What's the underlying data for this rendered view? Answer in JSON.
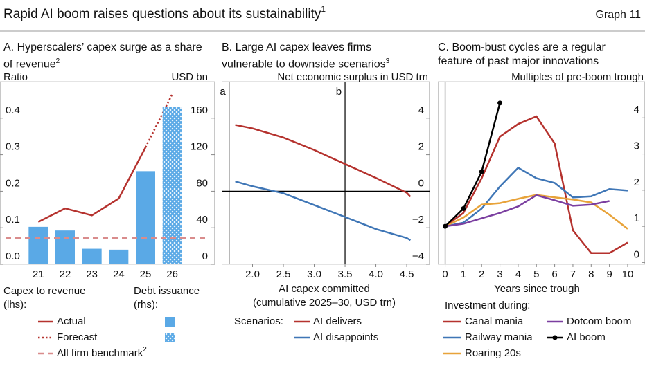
{
  "header": {
    "title": "Rapid AI boom raises questions about its sustainability",
    "title_note": "1",
    "graph_label": "Graph 11"
  },
  "chart_data": [
    {
      "type": "bar",
      "title": "A. Hyperscalers’ capex surge as a share of revenue",
      "title_note": "2",
      "ylabel": "Ratio",
      "y2label": "USD bn",
      "categories": [
        "21",
        "22",
        "23",
        "24",
        "25",
        "26"
      ],
      "ylim": [
        0,
        0.5
      ],
      "yticks": [
        {
          "value": 0,
          "label": "0.0"
        },
        0.1,
        0.2,
        0.3,
        0.4
      ],
      "y2lim": [
        0,
        200
      ],
      "y2ticks": [
        0,
        40,
        80,
        120,
        160
      ],
      "series": [
        {
          "type": "line",
          "name": "Actual",
          "color": "#b5322e",
          "style": "solid",
          "values": [
            0.116,
            0.153,
            0.134,
            0.18,
            0.32,
            null
          ]
        },
        {
          "type": "line",
          "name": "Forecast",
          "color": "#b5322e",
          "style": "dotted",
          "values": [
            null,
            null,
            null,
            null,
            0.32,
            0.466
          ]
        },
        {
          "type": "bar",
          "axis": "y2",
          "color": "#5aa9e6",
          "fill": "solid",
          "values": [
            41,
            37,
            17,
            16,
            102,
            null
          ]
        },
        {
          "type": "bar",
          "axis": "y2",
          "color": "#5aa9e6",
          "fill": "hatched",
          "values": [
            null,
            null,
            null,
            null,
            null,
            172
          ]
        }
      ],
      "benchmark": {
        "name": "All firm benchmark",
        "name_note": "2",
        "color": "#d98c8c",
        "style": "dashed",
        "value": 0.072
      },
      "legend_groups": [
        "Capex to revenue (lhs):",
        "Debt issuance (rhs):"
      ]
    },
    {
      "type": "line",
      "title": "B. Large AI capex leaves firms vulnerable to downside scenarios",
      "title_note": "3",
      "ylabel": "Net economic surplus in USD trn",
      "y_side": "right",
      "x": [
        1.72,
        2.0,
        2.5,
        3.0,
        3.5,
        4.0,
        4.5,
        4.56
      ],
      "xlim": [
        1.5,
        4.87
      ],
      "xticks": [
        {
          "value": 2,
          "label": "2.0"
        },
        2.5,
        {
          "value": 3,
          "label": "3.0"
        },
        3.5,
        {
          "value": 4,
          "label": "4.0"
        },
        4.5
      ],
      "ylim": [
        -4,
        6
      ],
      "yticks": [
        {
          "value": -4,
          "label": "−4"
        },
        {
          "value": -2,
          "label": "−2"
        },
        0,
        2,
        4
      ],
      "zero_line": true,
      "xlabel": [
        "AI capex committed",
        "(cumulative 2025–30, USD trn)"
      ],
      "vlines": [
        {
          "value": 1.62,
          "label": "a"
        },
        {
          "value": 3.5,
          "label": "b"
        }
      ],
      "legend_title": "Scenarios:",
      "series": [
        {
          "name": "AI delivers",
          "color": "#b5322e",
          "values": [
            3.63,
            3.44,
            2.94,
            2.26,
            1.49,
            0.73,
            -0.08,
            -0.3
          ]
        },
        {
          "name": "AI disappoints",
          "color": "#3f76b6",
          "values": [
            0.54,
            0.27,
            -0.11,
            -0.76,
            -1.41,
            -2.07,
            -2.56,
            -2.68
          ]
        }
      ]
    },
    {
      "type": "line",
      "title": "C. Boom-bust cycles are a regular feature of past major innovations",
      "ylabel": "Multiples of pre-boom trough",
      "y_side": "right",
      "x": [
        0,
        1,
        2,
        3,
        4,
        5,
        6,
        7,
        8,
        9,
        10
      ],
      "xlim": [
        -0.4,
        10.95
      ],
      "xticks": [
        0,
        1,
        2,
        3,
        4,
        5,
        6,
        7,
        8,
        9,
        10
      ],
      "ylim": [
        -0.05,
        5
      ],
      "yticks": [
        0,
        1,
        2,
        3,
        4
      ],
      "xlabel": [
        "Years since trough"
      ],
      "vlines": [
        {
          "value": 0
        }
      ],
      "legend_title": "Investment during:",
      "series": [
        {
          "name": "Canal mania",
          "color": "#b5322e",
          "values": [
            1.0,
            1.37,
            2.33,
            3.48,
            3.83,
            4.04,
            3.29,
            0.89,
            0.26,
            0.26,
            0.55
          ]
        },
        {
          "name": "Railway mania",
          "color": "#3f76b6",
          "values": [
            1.0,
            1.1,
            1.49,
            2.1,
            2.62,
            2.33,
            2.2,
            1.8,
            1.83,
            2.03,
            1.99
          ]
        },
        {
          "name": "Roaring 20s",
          "color": "#e8a33a",
          "values": [
            1.0,
            1.24,
            1.6,
            1.64,
            1.76,
            1.87,
            1.8,
            1.74,
            1.66,
            1.32,
            0.93
          ]
        },
        {
          "name": "Dotcom boom",
          "color": "#7b3fa0",
          "values": [
            1.0,
            1.07,
            1.22,
            1.37,
            1.55,
            1.86,
            1.72,
            1.57,
            1.6,
            1.7,
            null
          ]
        },
        {
          "name": "AI boom",
          "color": "#000000",
          "markers": true,
          "values": [
            1.0,
            1.49,
            2.51,
            4.41,
            null,
            null,
            null,
            null,
            null,
            null,
            null
          ]
        }
      ]
    }
  ]
}
